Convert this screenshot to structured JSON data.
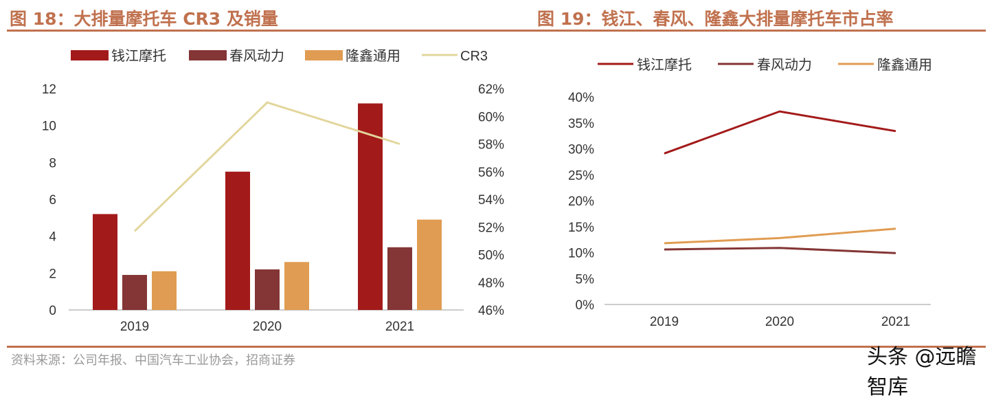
{
  "left": {
    "title": "图 18：大排量摩托车 CR3 及销量"
  },
  "right": {
    "title": "图 19：钱江、春风、隆鑫大排量摩托车市占率"
  },
  "source": "资料来源：公司年报、中国汽车工业协会，招商证券",
  "watermark": "头条 @远瞻智库",
  "chart_data": [
    {
      "type": "bar",
      "categories": [
        "2019",
        "2020",
        "2021"
      ],
      "series": [
        {
          "name": "钱江摩托",
          "type": "bar",
          "axis": "left",
          "color": "#a31a1a",
          "values": [
            5.2,
            7.5,
            11.2
          ]
        },
        {
          "name": "春风动力",
          "type": "bar",
          "axis": "left",
          "color": "#843535",
          "values": [
            1.9,
            2.2,
            3.4
          ]
        },
        {
          "name": "隆鑫通用",
          "type": "bar",
          "axis": "left",
          "color": "#e09c52",
          "values": [
            2.1,
            2.6,
            4.9
          ]
        },
        {
          "name": "CR3",
          "type": "line",
          "axis": "right",
          "color": "#e2d69c",
          "values": [
            51.7,
            61.0,
            58.0
          ]
        }
      ],
      "ylim": [
        0,
        12
      ],
      "yticks": [
        "0",
        "2",
        "4",
        "6",
        "8",
        "10",
        "12"
      ],
      "y2lim": [
        46,
        62
      ],
      "y2ticks": [
        "46%",
        "48%",
        "50%",
        "52%",
        "54%",
        "56%",
        "58%",
        "60%",
        "62%"
      ],
      "legend": "top",
      "grid": false
    },
    {
      "type": "line",
      "categories": [
        "2019",
        "2020",
        "2021"
      ],
      "series": [
        {
          "name": "钱江摩托",
          "color": "#a31a1a",
          "values": [
            29.1,
            37.2,
            33.4
          ]
        },
        {
          "name": "春风动力",
          "color": "#843535",
          "values": [
            10.6,
            10.9,
            9.9
          ]
        },
        {
          "name": "隆鑫通用",
          "color": "#e09c52",
          "values": [
            11.8,
            12.8,
            14.6
          ]
        }
      ],
      "ylim": [
        0,
        40
      ],
      "yticks": [
        "0%",
        "5%",
        "10%",
        "15%",
        "20%",
        "25%",
        "30%",
        "35%",
        "40%"
      ],
      "legend": "top",
      "grid": false
    }
  ]
}
